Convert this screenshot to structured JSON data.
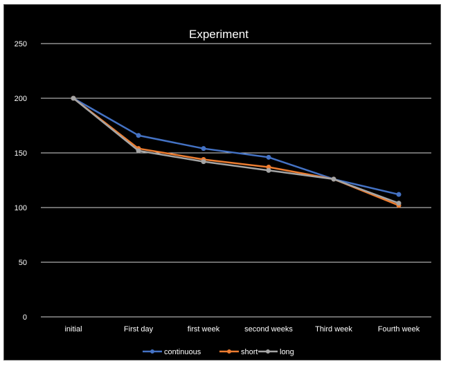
{
  "chart_data": {
    "type": "line",
    "title": "Experiment",
    "categories": [
      "initial",
      "First day",
      "first week",
      "second weeks",
      "Third week",
      "Fourth week"
    ],
    "series": [
      {
        "name": "continuous",
        "color": "#4472c4",
        "values": [
          200,
          166,
          154,
          146,
          126,
          112
        ]
      },
      {
        "name": "short",
        "color": "#ed7d31",
        "values": [
          200,
          154,
          144,
          137,
          126,
          102
        ]
      },
      {
        "name": "long",
        "color": "#a5a5a5",
        "values": [
          200,
          152,
          142,
          134,
          126,
          104
        ]
      }
    ],
    "yticks": [
      "0",
      "50",
      "100",
      "150",
      "200",
      "250"
    ],
    "ylim": [
      0,
      250
    ],
    "grid": true,
    "legend": "bottom",
    "background": "#000000"
  }
}
